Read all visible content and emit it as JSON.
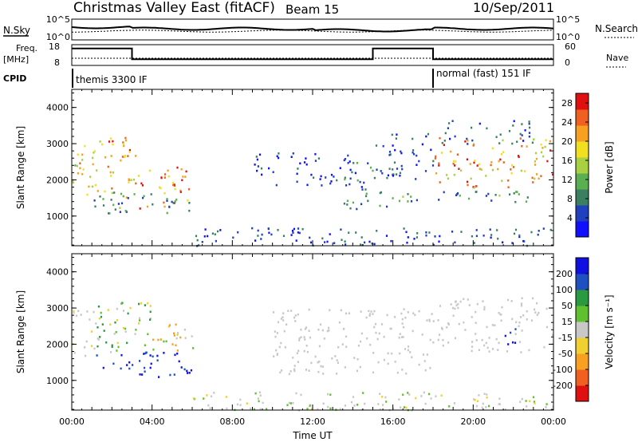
{
  "header": {
    "title": "Christmas Valley East (fitACF)",
    "beam": "Beam 15",
    "date": "10/Sep/2011"
  },
  "status_panels": {
    "nsky_label": "N.Sky",
    "nsearch_label": "N.Search",
    "freq_label_1": "Freq.",
    "freq_label_2": "[MHz]",
    "nave_label": "Nave",
    "cpid_label": "CPID",
    "nsky_ticks": [
      "10^5",
      "10^0"
    ],
    "nsearch_ticks": [
      "10^5",
      "10^0"
    ],
    "freq_ticks": [
      "18",
      "8"
    ],
    "nave_ticks": [
      "60",
      "0"
    ],
    "cpid_segments": [
      {
        "label": "themis 3300 IF",
        "start_hour": 0,
        "end_hour": 18
      },
      {
        "label": "normal (fast) 151 IF",
        "start_hour": 18,
        "end_hour": 24
      }
    ],
    "freq_steps": [
      {
        "start_hour": 0,
        "end_hour": 3,
        "level": 0.82
      },
      {
        "start_hour": 3,
        "end_hour": 15,
        "level": 0.3
      },
      {
        "start_hour": 15,
        "end_hour": 18,
        "level": 0.82
      },
      {
        "start_hour": 18,
        "end_hour": 24,
        "level": 0.3
      }
    ]
  },
  "chart_data": [
    {
      "type": "heatmap",
      "name": "power",
      "ylabel": "Slant Range [km]",
      "xlabel": "",
      "ylim": [
        180,
        4500
      ],
      "xlim_hours": [
        0,
        24
      ],
      "yticks": [
        "1000",
        "2000",
        "3000",
        "4000"
      ],
      "colorbar": {
        "label": "Power [dB]",
        "ticks": [
          "4",
          "8",
          "12",
          "16",
          "20",
          "24",
          "28"
        ],
        "range": [
          0,
          30
        ],
        "colors": [
          "#1010ff",
          "#2040c0",
          "#3a8060",
          "#5ab050",
          "#a8d040",
          "#f0e020",
          "#f8a020",
          "#f06020",
          "#e01010"
        ]
      },
      "regions": [
        {
          "t0": 0.0,
          "t1": 1.2,
          "r0": 1600,
          "r1": 3000,
          "v0": 12,
          "v1": 24
        },
        {
          "t0": 1.2,
          "t1": 3.2,
          "r0": 1500,
          "r1": 3200,
          "v0": 14,
          "v1": 28
        },
        {
          "t0": 3.2,
          "t1": 6.0,
          "r0": 1200,
          "r1": 2600,
          "v0": 18,
          "v1": 30
        },
        {
          "t0": 1.0,
          "t1": 6.0,
          "r0": 1100,
          "r1": 1700,
          "v0": 4,
          "v1": 14
        },
        {
          "t0": 6.0,
          "t1": 24.0,
          "r0": 200,
          "r1": 700,
          "v0": 0,
          "v1": 10
        },
        {
          "t0": 9.0,
          "t1": 14.0,
          "r0": 1800,
          "r1": 2800,
          "v0": 0,
          "v1": 8
        },
        {
          "t0": 13.5,
          "t1": 16.0,
          "r0": 1200,
          "r1": 2500,
          "v0": 2,
          "v1": 12
        },
        {
          "t0": 15.0,
          "t1": 18.0,
          "r0": 2000,
          "r1": 3300,
          "v0": 2,
          "v1": 10
        },
        {
          "t0": 18.0,
          "t1": 24.0,
          "r0": 1800,
          "r1": 3200,
          "v0": 14,
          "v1": 30
        },
        {
          "t0": 16.0,
          "t1": 24.0,
          "r0": 1400,
          "r1": 1700,
          "v0": 4,
          "v1": 14
        },
        {
          "t0": 18.0,
          "t1": 23.0,
          "r0": 3000,
          "r1": 3700,
          "v0": 2,
          "v1": 10
        }
      ]
    },
    {
      "type": "heatmap",
      "name": "velocity",
      "ylabel": "Slant Range [km]",
      "xlabel": "Time UT",
      "ylim": [
        180,
        4500
      ],
      "xlim_hours": [
        0,
        24
      ],
      "yticks": [
        "1000",
        "2000",
        "3000",
        "4000"
      ],
      "xticks": [
        "00:00",
        "04:00",
        "08:00",
        "12:00",
        "16:00",
        "20:00",
        "00:00"
      ],
      "colorbar": {
        "label": "Velocity [m s⁻¹]",
        "ticks": [
          "200",
          "100",
          "50",
          "15",
          "-15",
          "-50",
          "-100",
          "-200"
        ],
        "range": [
          -250,
          250
        ],
        "colors": [
          "#e01010",
          "#f06020",
          "#f8a020",
          "#f0d030",
          "#c8c8c8",
          "#60c030",
          "#2a9a40",
          "#2050c0",
          "#1010e0"
        ]
      },
      "regions": [
        {
          "t0": 0.0,
          "t1": 1.2,
          "r0": 1600,
          "r1": 3000,
          "v0": -60,
          "v1": 20
        },
        {
          "t0": 1.2,
          "t1": 6.0,
          "r0": 1100,
          "r1": 1800,
          "v0": 150,
          "v1": 250
        },
        {
          "t0": 1.2,
          "t1": 4.0,
          "r0": 1800,
          "r1": 3200,
          "v0": -80,
          "v1": 120
        },
        {
          "t0": 4.0,
          "t1": 6.0,
          "r0": 1800,
          "r1": 2600,
          "v0": -150,
          "v1": 60
        },
        {
          "t0": 6.0,
          "t1": 24.0,
          "r0": 200,
          "r1": 700,
          "v0": -40,
          "v1": 60
        },
        {
          "t0": 10.0,
          "t1": 18.0,
          "r0": 1200,
          "r1": 3000,
          "v0": -15,
          "v1": 15
        },
        {
          "t0": 18.0,
          "t1": 24.0,
          "r0": 1800,
          "r1": 3300,
          "v0": -15,
          "v1": 15
        },
        {
          "t0": 21.5,
          "t1": 22.2,
          "r0": 2000,
          "r1": 2800,
          "v0": 160,
          "v1": 250
        }
      ]
    }
  ]
}
